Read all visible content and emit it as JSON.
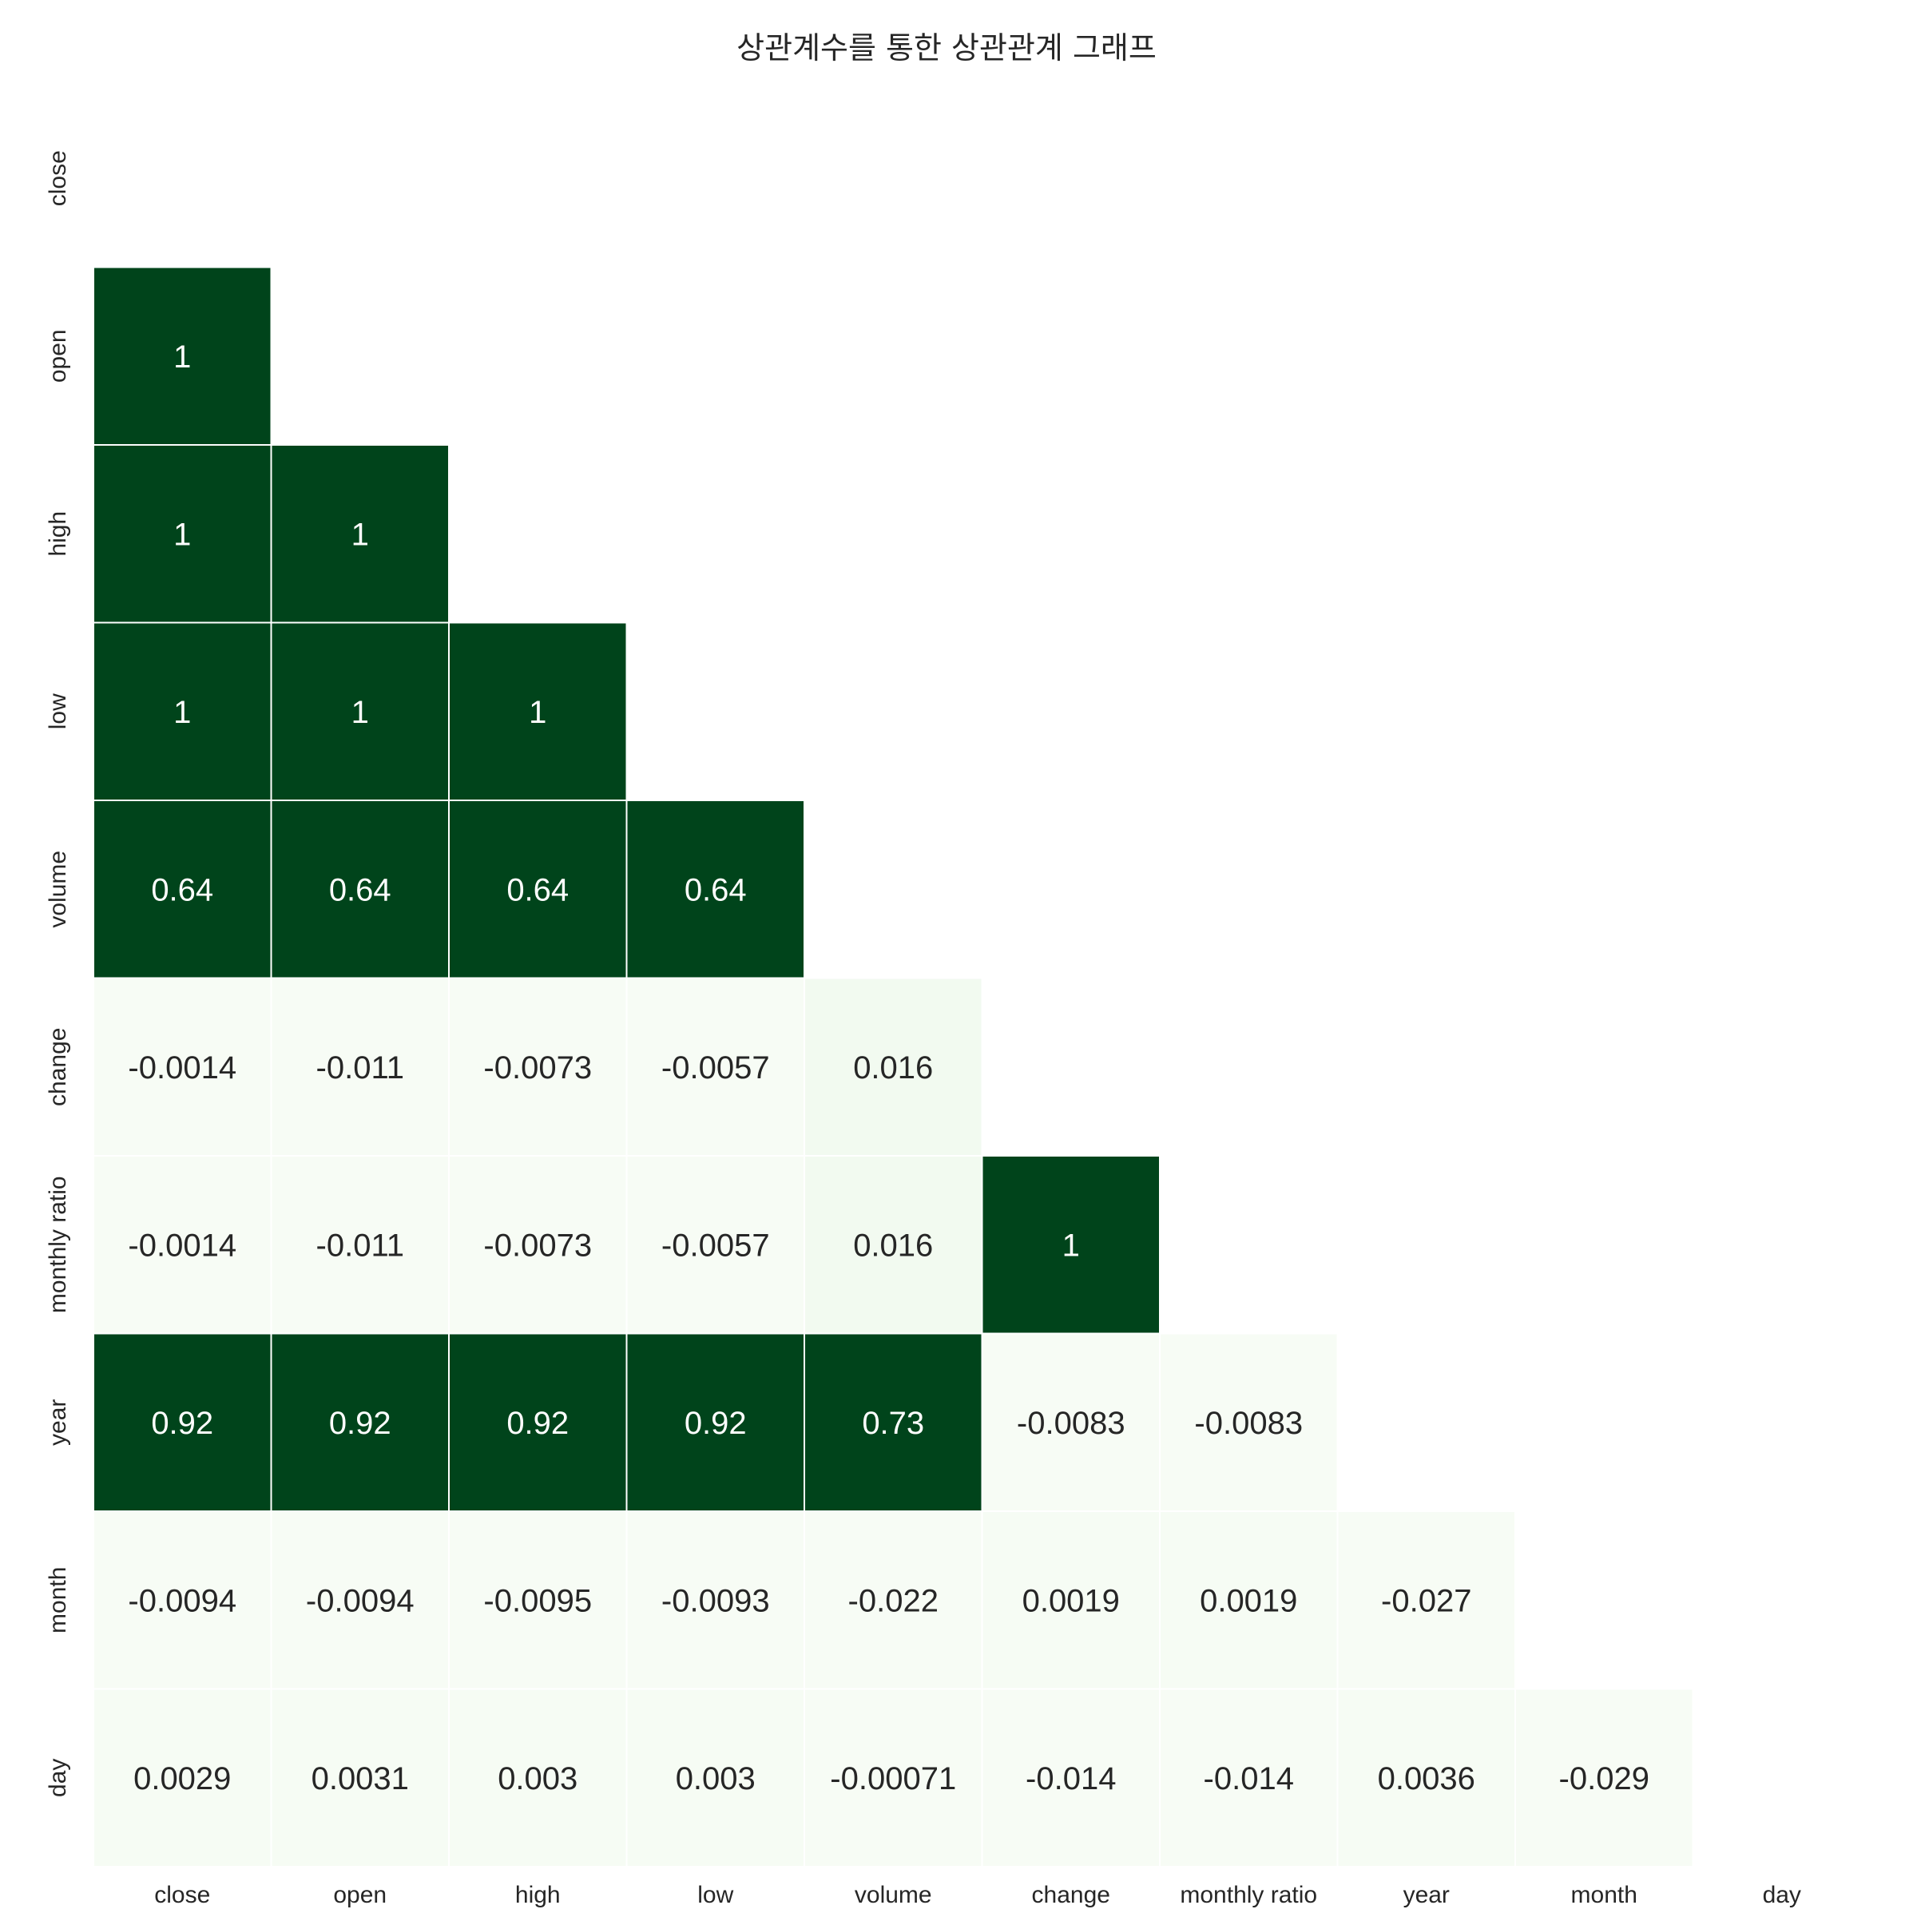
{
  "chart_data": {
    "type": "heatmap",
    "title": "상관계수를 통한 상관관계 그래프",
    "variables": [
      "close",
      "open",
      "high",
      "low",
      "volume",
      "change",
      "monthly ratio",
      "year",
      "month",
      "day"
    ],
    "mask": "upper-triangle-including-diagonal",
    "colormap": "Greens",
    "color_scale": [
      0,
      0.5
    ],
    "grid": false,
    "legend": "none",
    "matrix": [
      [
        null,
        null,
        null,
        null,
        null,
        null,
        null,
        null,
        null,
        null
      ],
      [
        1,
        null,
        null,
        null,
        null,
        null,
        null,
        null,
        null,
        null
      ],
      [
        1,
        1,
        null,
        null,
        null,
        null,
        null,
        null,
        null,
        null
      ],
      [
        1,
        1,
        1,
        null,
        null,
        null,
        null,
        null,
        null,
        null
      ],
      [
        0.64,
        0.64,
        0.64,
        0.64,
        null,
        null,
        null,
        null,
        null,
        null
      ],
      [
        -0.0014,
        -0.011,
        -0.0073,
        -0.0057,
        0.016,
        null,
        null,
        null,
        null,
        null
      ],
      [
        -0.0014,
        -0.011,
        -0.0073,
        -0.0057,
        0.016,
        1,
        null,
        null,
        null,
        null
      ],
      [
        0.92,
        0.92,
        0.92,
        0.92,
        0.73,
        -0.0083,
        -0.0083,
        null,
        null,
        null
      ],
      [
        -0.0094,
        -0.0094,
        -0.0095,
        -0.0093,
        -0.022,
        0.0019,
        0.0019,
        -0.027,
        null,
        null
      ],
      [
        0.0029,
        0.0031,
        0.003,
        0.003,
        -0.00071,
        -0.014,
        -0.014,
        0.0036,
        -0.029,
        null
      ]
    ]
  }
}
